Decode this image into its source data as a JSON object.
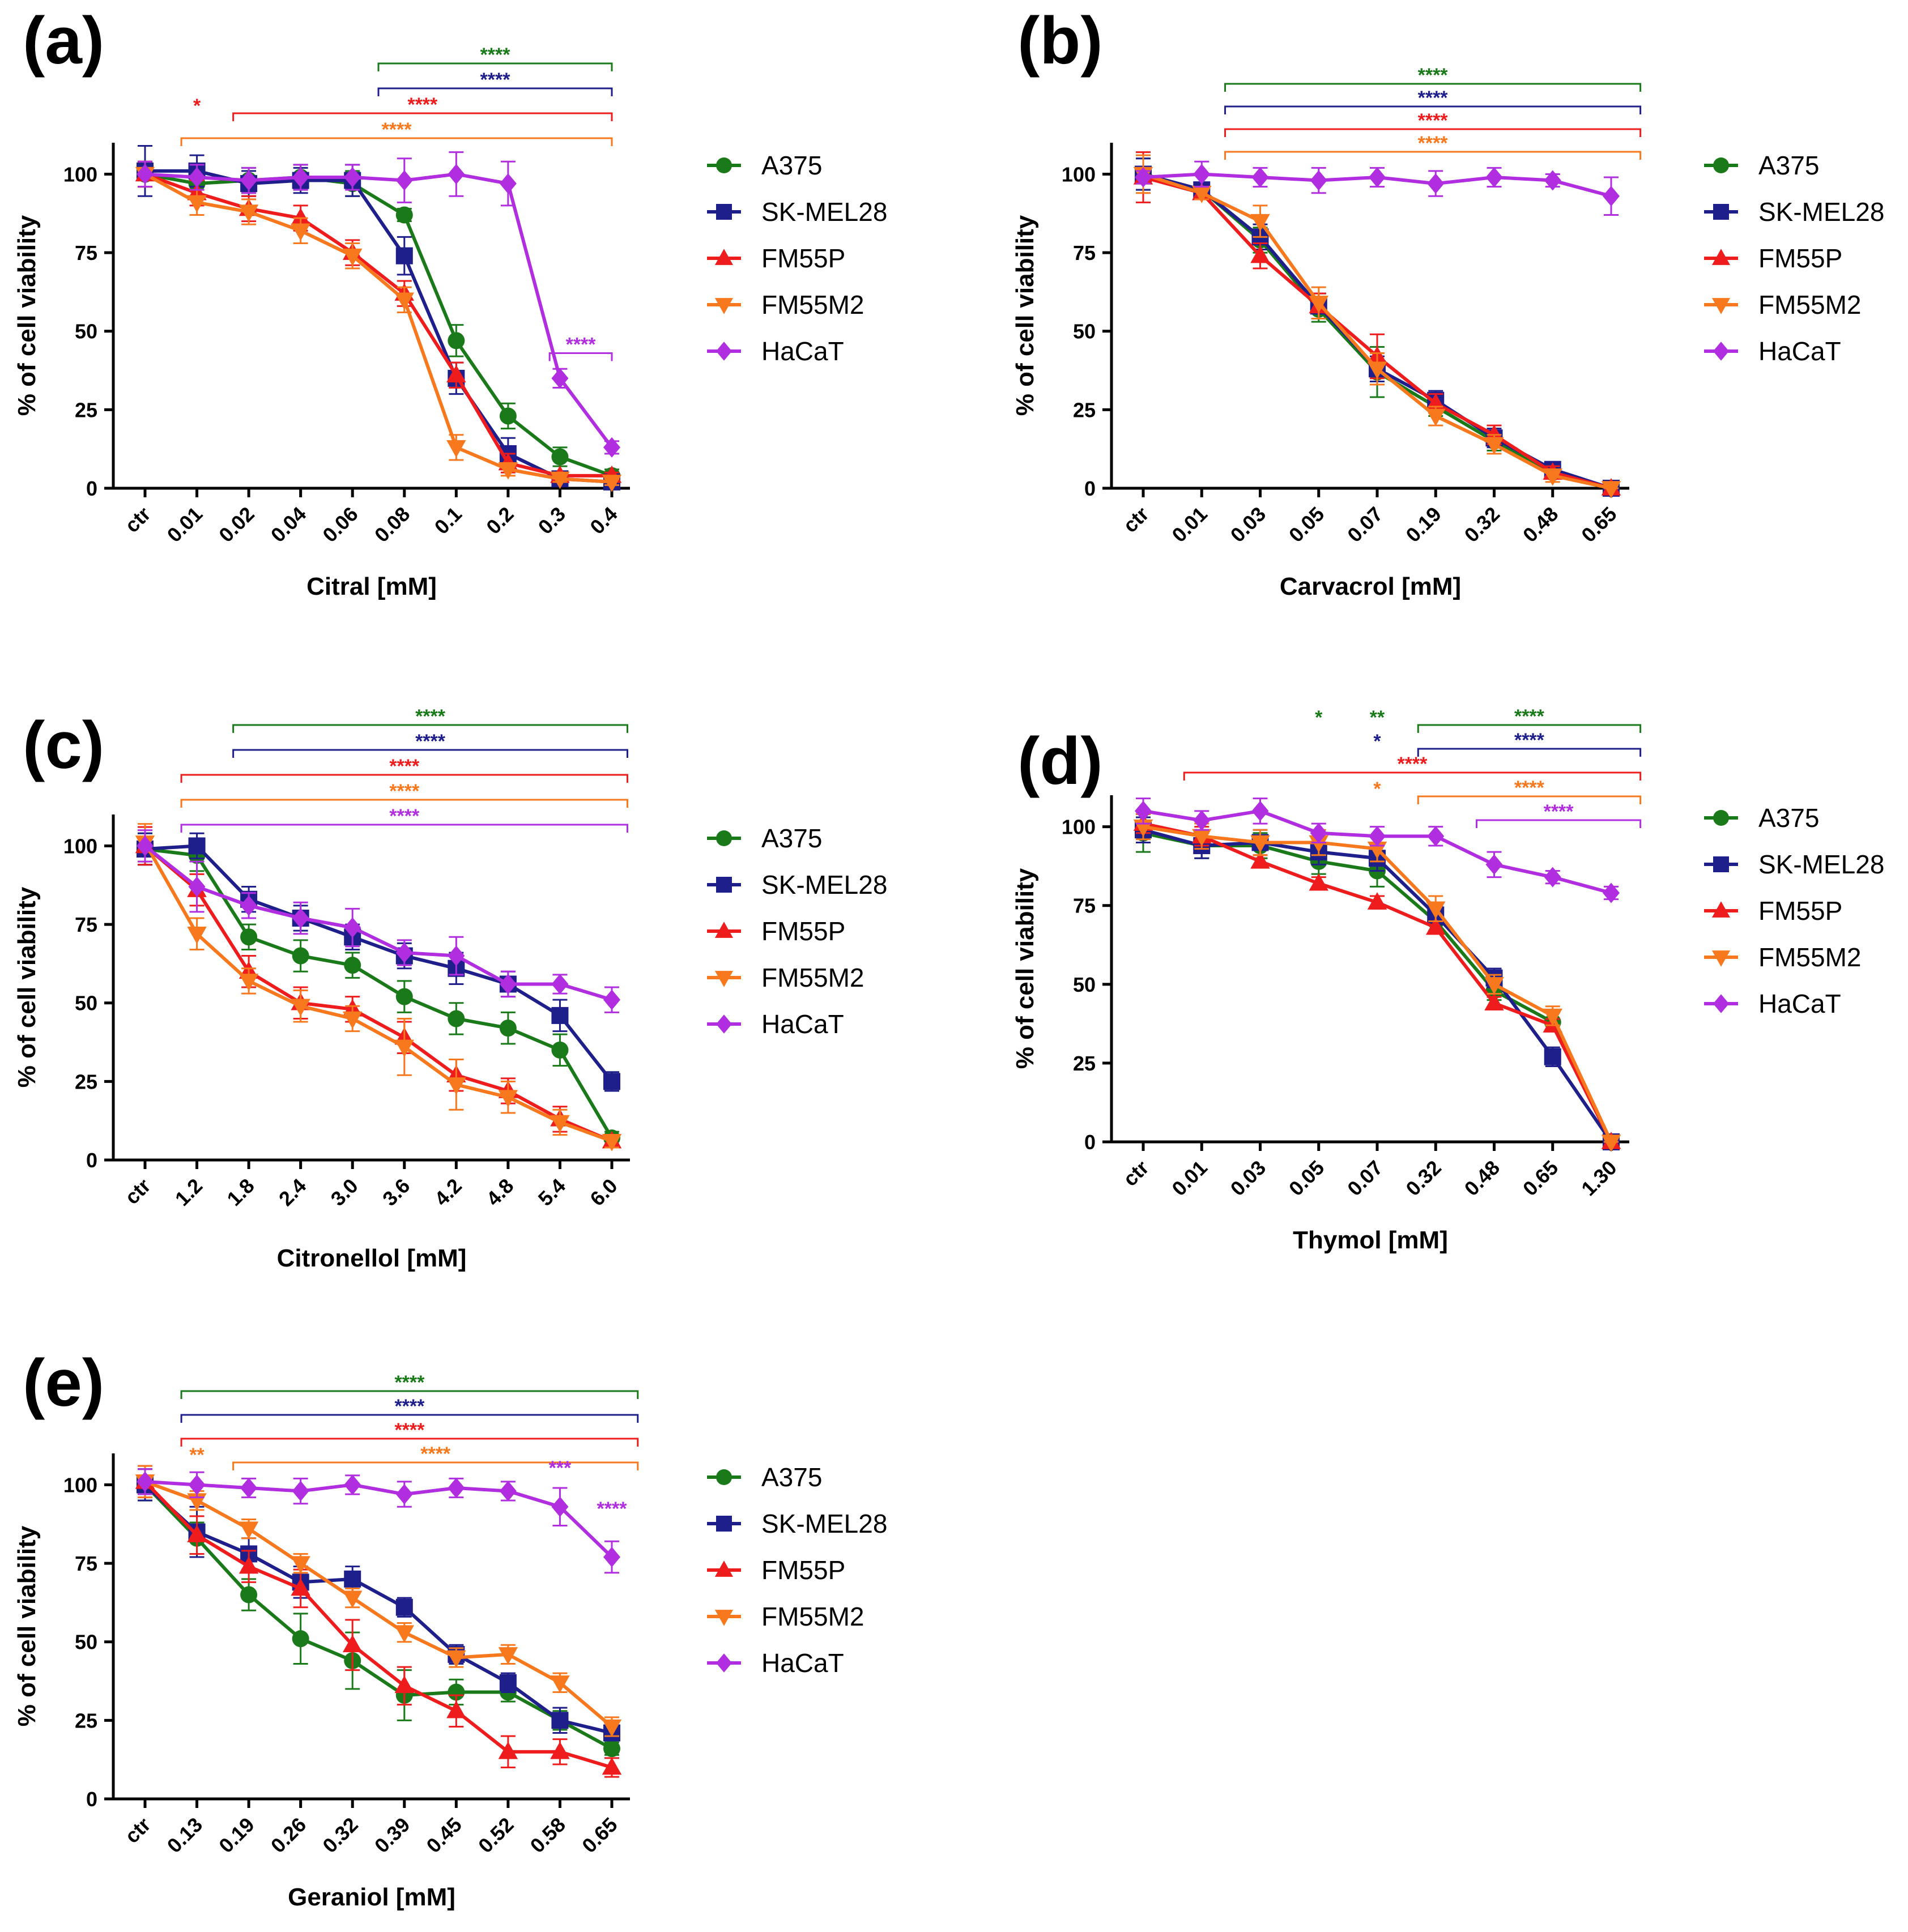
{
  "figure": {
    "ylabel": "% of cell viability"
  },
  "colors": {
    "A375": "#1a7a1a",
    "SK-MEL28": "#1f1f8c",
    "FM55P": "#ee1c1c",
    "FM55M2": "#f7781d",
    "HaCaT": "#b02ee0"
  },
  "legend": [
    "A375",
    "SK-MEL28",
    "FM55P",
    "FM55M2",
    "HaCaT"
  ],
  "chart_data": [
    {
      "panel": "(a)",
      "type": "line",
      "xlabel": "Citral [mM]",
      "ylabel": "% of cell viability",
      "categories": [
        "ctr",
        "0.01",
        "0.02",
        "0.04",
        "0.06",
        "0.08",
        "0.1",
        "0.2",
        "0.3",
        "0.4"
      ],
      "ylim": [
        0,
        110
      ],
      "yticks": [
        0,
        25,
        50,
        75,
        100
      ],
      "series": [
        {
          "name": "A375",
          "values": [
            100,
            97,
            98,
            99,
            97,
            87,
            47,
            23,
            10,
            4
          ],
          "errors": [
            4,
            4,
            4,
            4,
            4,
            2,
            5,
            4,
            3,
            2
          ]
        },
        {
          "name": "SK-MEL28",
          "values": [
            101,
            101,
            97,
            98,
            98,
            74,
            35,
            11,
            3,
            2
          ],
          "errors": [
            8,
            5,
            4,
            4,
            5,
            6,
            5,
            5,
            1,
            1
          ]
        },
        {
          "name": "FM55P",
          "values": [
            100,
            94,
            89,
            86,
            75,
            62,
            36,
            8,
            4,
            4
          ],
          "errors": [
            4,
            4,
            4,
            4,
            4,
            4,
            4,
            3,
            1,
            1
          ]
        },
        {
          "name": "FM55M2",
          "values": [
            100,
            91,
            88,
            82,
            74,
            60,
            13,
            6,
            3,
            2
          ],
          "errors": [
            4,
            4,
            4,
            4,
            4,
            4,
            4,
            2,
            1,
            1
          ]
        },
        {
          "name": "HaCaT",
          "values": [
            100,
            99,
            98,
            99,
            99,
            98,
            100,
            97,
            35,
            13
          ],
          "errors": [
            4,
            4,
            4,
            4,
            4,
            7,
            7,
            7,
            3,
            2
          ]
        }
      ],
      "significance": [
        {
          "series": "A375",
          "text": "****",
          "from": 4.5,
          "to": 9,
          "level": 0
        },
        {
          "series": "SK-MEL28",
          "text": "****",
          "from": 4.5,
          "to": 9,
          "level": 1
        },
        {
          "series": "FM55P",
          "text": "*",
          "at": 1,
          "level": 2
        },
        {
          "series": "FM55P",
          "text": "****",
          "from": 1.7,
          "to": 9,
          "level": 2
        },
        {
          "series": "FM55M2",
          "text": "****",
          "from": 0.7,
          "to": 9,
          "level": 3
        },
        {
          "series": "HaCaT",
          "text": "****",
          "from": 7.8,
          "to": 9,
          "inplot": 43
        }
      ]
    },
    {
      "panel": "(b)",
      "type": "line",
      "xlabel": "Carvacrol [mM]",
      "ylabel": "% of cell viability",
      "categories": [
        "ctr",
        "0.01",
        "0.03",
        "0.05",
        "0.07",
        "0.19",
        "0.32",
        "0.48",
        "0.65"
      ],
      "ylim": [
        0,
        110
      ],
      "yticks": [
        0,
        25,
        50,
        75,
        100
      ],
      "series": [
        {
          "name": "A375",
          "values": [
            100,
            95,
            79,
            57,
            37,
            26,
            15,
            5,
            0
          ],
          "errors": [
            5,
            2,
            4,
            4,
            8,
            3,
            3,
            2,
            1
          ]
        },
        {
          "name": "SK-MEL28",
          "values": [
            100,
            95,
            80,
            58,
            38,
            28,
            16,
            6,
            0
          ],
          "errors": [
            5,
            2,
            4,
            4,
            4,
            3,
            3,
            2,
            1
          ]
        },
        {
          "name": "FM55P",
          "values": [
            99,
            94,
            74,
            58,
            42,
            27,
            17,
            5,
            0
          ],
          "errors": [
            8,
            2,
            4,
            4,
            7,
            3,
            3,
            2,
            1
          ]
        },
        {
          "name": "FM55M2",
          "values": [
            100,
            94,
            85,
            59,
            38,
            23,
            14,
            4,
            0
          ],
          "errors": [
            6,
            2,
            5,
            5,
            5,
            3,
            3,
            2,
            1
          ]
        },
        {
          "name": "HaCaT",
          "values": [
            99,
            100,
            99,
            98,
            99,
            97,
            99,
            98,
            93
          ],
          "errors": [
            2,
            4,
            3,
            4,
            3,
            4,
            3,
            2,
            6
          ]
        }
      ],
      "significance": [
        {
          "series": "A375",
          "text": "****",
          "from": 1.4,
          "to": 8.5,
          "level": 0
        },
        {
          "series": "SK-MEL28",
          "text": "****",
          "from": 1.4,
          "to": 8.5,
          "level": 1
        },
        {
          "series": "FM55P",
          "text": "****",
          "from": 1.4,
          "to": 8.5,
          "level": 2
        },
        {
          "series": "FM55M2",
          "text": "****",
          "from": 1.4,
          "to": 8.5,
          "level": 3
        }
      ]
    },
    {
      "panel": "(c)",
      "type": "line",
      "xlabel": "Citronellol [mM]",
      "ylabel": "% of cell viability",
      "categories": [
        "ctr",
        "1.2",
        "1.8",
        "2.4",
        "3.0",
        "3.6",
        "4.2",
        "4.8",
        "5.4",
        "6.0"
      ],
      "ylim": [
        0,
        110
      ],
      "yticks": [
        0,
        25,
        50,
        75,
        100
      ],
      "series": [
        {
          "name": "A375",
          "values": [
            99,
            97,
            71,
            65,
            62,
            52,
            45,
            42,
            35,
            7
          ],
          "errors": [
            5,
            5,
            4,
            5,
            4,
            5,
            5,
            5,
            5,
            2
          ]
        },
        {
          "name": "SK-MEL28",
          "values": [
            99,
            100,
            83,
            77,
            71,
            65,
            61,
            56,
            46,
            25
          ],
          "errors": [
            5,
            4,
            4,
            4,
            4,
            4,
            5,
            4,
            5,
            3
          ]
        },
        {
          "name": "FM55P",
          "values": [
            100,
            86,
            60,
            50,
            48,
            39,
            27,
            22,
            13,
            6
          ],
          "errors": [
            6,
            5,
            5,
            5,
            4,
            5,
            5,
            4,
            4,
            2
          ]
        },
        {
          "name": "FM55M2",
          "values": [
            101,
            72,
            57,
            49,
            45,
            36,
            24,
            20,
            12,
            6
          ],
          "errors": [
            6,
            5,
            4,
            5,
            4,
            9,
            8,
            5,
            4,
            2
          ]
        },
        {
          "name": "HaCaT",
          "values": [
            100,
            87,
            81,
            77,
            74,
            66,
            65,
            56,
            56,
            51
          ],
          "errors": [
            5,
            8,
            4,
            5,
            6,
            4,
            6,
            4,
            3,
            4
          ]
        }
      ],
      "significance": [
        {
          "series": "A375",
          "text": "****",
          "from": 1.7,
          "to": 9.3,
          "level": 0
        },
        {
          "series": "SK-MEL28",
          "text": "****",
          "from": 1.7,
          "to": 9.3,
          "level": 1
        },
        {
          "series": "FM55P",
          "text": "****",
          "from": 0.7,
          "to": 9.3,
          "level": 2
        },
        {
          "series": "FM55M2",
          "text": "****",
          "from": 0.7,
          "to": 9.3,
          "level": 3
        },
        {
          "series": "HaCaT",
          "text": "****",
          "from": 0.7,
          "to": 9.3,
          "level": 4
        }
      ]
    },
    {
      "panel": "(d)",
      "type": "line",
      "xlabel": "Thymol [mM]",
      "ylabel": "% of cell viability",
      "categories": [
        "ctr",
        "0.01",
        "0.03",
        "0.05",
        "0.07",
        "0.32",
        "0.48",
        "0.65",
        "1.30"
      ],
      "ylim": [
        0,
        110
      ],
      "yticks": [
        0,
        25,
        50,
        75,
        100
      ],
      "series": [
        {
          "name": "A375",
          "values": [
            98,
            94,
            94,
            89,
            86,
            70,
            48,
            38,
            0
          ],
          "errors": [
            6,
            4,
            4,
            4,
            5,
            3,
            3,
            3,
            1
          ]
        },
        {
          "name": "SK-MEL28",
          "values": [
            99,
            94,
            95,
            92,
            90,
            72,
            52,
            27,
            0
          ],
          "errors": [
            4,
            4,
            4,
            4,
            4,
            3,
            3,
            3,
            1
          ]
        },
        {
          "name": "FM55P",
          "values": [
            101,
            97,
            89,
            82,
            76,
            68,
            44,
            37,
            0
          ],
          "errors": [
            3,
            3,
            2,
            2,
            2,
            2,
            2,
            2,
            1
          ]
        },
        {
          "name": "FM55M2",
          "values": [
            100,
            97,
            95,
            95,
            93,
            74,
            50,
            40,
            0
          ],
          "errors": [
            4,
            4,
            4,
            4,
            4,
            4,
            3,
            3,
            1
          ]
        },
        {
          "name": "HaCaT",
          "values": [
            105,
            102,
            105,
            98,
            97,
            97,
            88,
            84,
            79
          ],
          "errors": [
            4,
            3,
            4,
            3,
            3,
            3,
            4,
            2,
            2
          ]
        }
      ],
      "significance": [
        {
          "series": "A375",
          "text": "*",
          "at": 3,
          "level": 0
        },
        {
          "series": "A375",
          "text": "**",
          "at": 4,
          "level": 0
        },
        {
          "series": "A375",
          "text": "****",
          "from": 4.7,
          "to": 8.5,
          "level": 0
        },
        {
          "series": "SK-MEL28",
          "text": "*",
          "at": 4,
          "level": 1
        },
        {
          "series": "SK-MEL28",
          "text": "****",
          "from": 4.7,
          "to": 8.5,
          "level": 1
        },
        {
          "series": "FM55P",
          "text": "****",
          "from": 0.7,
          "to": 8.5,
          "level": 2
        },
        {
          "series": "FM55M2",
          "text": "*",
          "at": 4,
          "level": 3
        },
        {
          "series": "FM55M2",
          "text": "****",
          "from": 4.7,
          "to": 8.5,
          "level": 3
        },
        {
          "series": "HaCaT",
          "text": "****",
          "from": 5.7,
          "to": 8.5,
          "level": 4
        }
      ]
    },
    {
      "panel": "(e)",
      "type": "line",
      "xlabel": "Geraniol [mM]",
      "ylabel": "% of cell viability",
      "categories": [
        "ctr",
        "0.13",
        "0.19",
        "0.26",
        "0.32",
        "0.39",
        "0.45",
        "0.52",
        "0.58",
        "0.65"
      ],
      "ylim": [
        0,
        110
      ],
      "yticks": [
        0,
        25,
        50,
        75,
        100
      ],
      "series": [
        {
          "name": "A375",
          "values": [
            100,
            83,
            65,
            51,
            44,
            33,
            34,
            34,
            25,
            16
          ],
          "errors": [
            5,
            5,
            5,
            8,
            9,
            8,
            4,
            3,
            3,
            2
          ]
        },
        {
          "name": "SK-MEL28",
          "values": [
            100,
            85,
            78,
            69,
            70,
            61,
            46,
            37,
            25,
            21
          ],
          "errors": [
            5,
            8,
            5,
            5,
            4,
            3,
            3,
            3,
            4,
            2
          ]
        },
        {
          "name": "FM55P",
          "values": [
            101,
            84,
            74,
            67,
            49,
            36,
            28,
            15,
            15,
            10
          ],
          "errors": [
            5,
            6,
            5,
            6,
            8,
            6,
            5,
            5,
            4,
            3
          ]
        },
        {
          "name": "FM55M2",
          "values": [
            101,
            95,
            86,
            75,
            64,
            53,
            45,
            46,
            37,
            23
          ],
          "errors": [
            5,
            3,
            3,
            3,
            3,
            3,
            3,
            3,
            3,
            3
          ]
        },
        {
          "name": "HaCaT",
          "values": [
            101,
            100,
            99,
            98,
            100,
            97,
            99,
            98,
            93,
            77
          ],
          "errors": [
            4,
            4,
            3,
            4,
            3,
            4,
            3,
            3,
            6,
            5
          ]
        }
      ],
      "significance": [
        {
          "series": "A375",
          "text": "****",
          "from": 0.7,
          "to": 9.5,
          "level": 0
        },
        {
          "series": "SK-MEL28",
          "text": "****",
          "from": 0.7,
          "to": 9.5,
          "level": 1
        },
        {
          "series": "FM55P",
          "text": "****",
          "from": 0.7,
          "to": 9.5,
          "level": 2
        },
        {
          "series": "FM55M2",
          "text": "**",
          "at": 1,
          "level": 3
        },
        {
          "series": "FM55M2",
          "text": "****",
          "from": 1.7,
          "to": 9.5,
          "level": 3
        },
        {
          "series": "HaCaT",
          "text": "***",
          "at": 8,
          "inplot": 103
        },
        {
          "series": "HaCaT",
          "text": "****",
          "at": 9,
          "inplot": 90
        }
      ]
    }
  ]
}
